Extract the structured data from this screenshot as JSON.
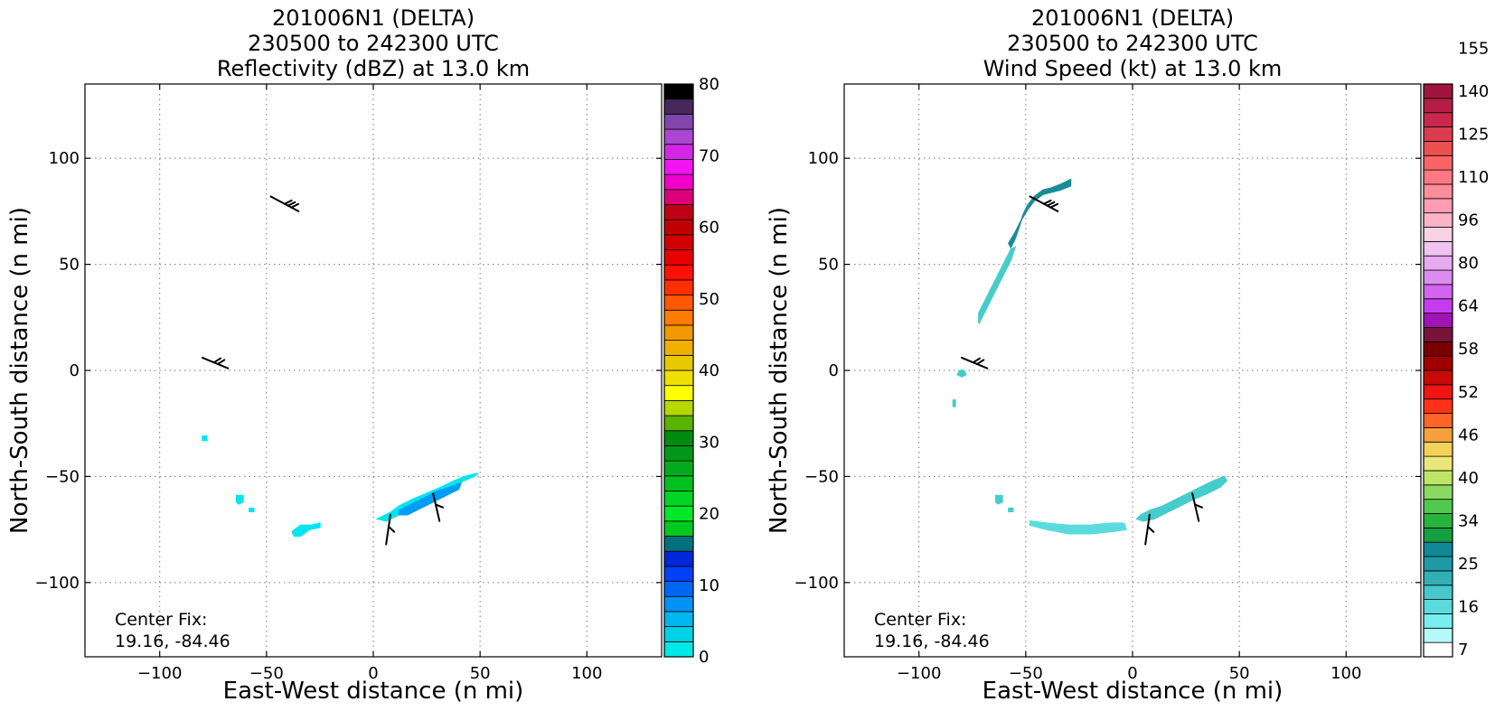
{
  "chart_data": [
    {
      "type": "heatmap",
      "title_lines": [
        "201006N1 (DELTA)",
        "230500 to 242300 UTC",
        "Reflectivity (dBZ) at 13.0 km"
      ],
      "xlabel": "East-West distance (n mi)",
      "ylabel": "North-South distance (n mi)",
      "xlim": [
        -135,
        135
      ],
      "ylim": [
        -135,
        135
      ],
      "xticks": [
        -100,
        -50,
        0,
        50,
        100
      ],
      "yticks": [
        -100,
        -50,
        0,
        50,
        100
      ],
      "grid": true,
      "annotation": [
        "Center Fix:",
        "19.16, -84.46"
      ],
      "colorbar": {
        "ticks": [
          "0",
          "10",
          "20",
          "30",
          "40",
          "50",
          "60",
          "70",
          "80"
        ],
        "colors": [
          "#00e8e8",
          "#00d2e6",
          "#00b6ee",
          "#0092f4",
          "#0068f0",
          "#0040f8",
          "#0028d8",
          "#00707c",
          "#00ca20",
          "#00e828",
          "#00d424",
          "#00c020",
          "#00aa1c",
          "#009818",
          "#008a10",
          "#5ab200",
          "#b4d800",
          "#ffff00",
          "#f0e000",
          "#e8c800",
          "#f0b000",
          "#f49800",
          "#ff7c00",
          "#ff5800",
          "#ff3000",
          "#ff1000",
          "#e80000",
          "#d20000",
          "#c00000",
          "#c00014",
          "#dc0078",
          "#f000c8",
          "#f014f0",
          "#d228e6",
          "#aa46d2",
          "#8246aa",
          "#46285a",
          "#000000"
        ]
      },
      "series": [
        {
          "type": "patch",
          "color": "#00e5ee",
          "x": [
            8,
            12,
            18,
            25,
            32,
            38,
            43,
            49,
            47,
            40,
            33,
            25,
            18,
            12,
            6,
            2
          ],
          "y": [
            -67,
            -64,
            -61,
            -58,
            -55,
            -52,
            -50,
            -48.5,
            -50,
            -53,
            -56,
            -60,
            -64,
            -68,
            -71,
            -70
          ]
        },
        {
          "type": "patch",
          "color": "#009cf6",
          "x": [
            12,
            18,
            24,
            30,
            36,
            41,
            40,
            34,
            28,
            22,
            16,
            12
          ],
          "y": [
            -66,
            -63,
            -60,
            -57,
            -55,
            -53,
            -56,
            -59,
            -62,
            -65,
            -68,
            -68
          ]
        },
        {
          "type": "patch",
          "color": "#00e5ee",
          "x": [
            -38,
            -34,
            -29,
            -25,
            -25,
            -30,
            -34,
            -37
          ],
          "y": [
            -76,
            -73,
            -73,
            -72,
            -74,
            -75,
            -78,
            -78
          ]
        },
        {
          "type": "patch",
          "color": "#00e5ee",
          "x": [
            -64,
            -61,
            -61,
            -63,
            -64
          ],
          "y": [
            -59,
            -59,
            -62,
            -63,
            -62
          ]
        },
        {
          "type": "patch",
          "color": "#00e5ee",
          "x": [
            -58,
            -56,
            -56,
            -58
          ],
          "y": [
            -65,
            -65,
            -66.5,
            -66.5
          ]
        },
        {
          "type": "patch",
          "color": "#00e5ee",
          "x": [
            -80,
            -78,
            -78,
            -80
          ],
          "y": [
            -31,
            -31,
            -33,
            -33
          ]
        }
      ],
      "wind_barbs": [
        {
          "x": -35,
          "y": 75,
          "ux": -13,
          "uy": 7,
          "barbs": [
            0.5,
            0.38,
            0.26
          ]
        },
        {
          "x": -68,
          "y": 1,
          "ux": -12,
          "uy": 5,
          "barbs": [
            0.55,
            0.4
          ]
        },
        {
          "x": 6,
          "y": -82,
          "ux": 2,
          "uy": 14,
          "barbs": [
            0.6
          ]
        },
        {
          "x": 31,
          "y": -71,
          "ux": -3,
          "uy": 13,
          "barbs": [
            0.6
          ]
        }
      ]
    },
    {
      "type": "heatmap",
      "title_lines": [
        "201006N1 (DELTA)",
        "230500 to 242300 UTC",
        "Wind Speed (kt) at 13.0 km"
      ],
      "xlabel": "East-West distance (n mi)",
      "ylabel": "North-South distance (n mi)",
      "xlim": [
        -135,
        135
      ],
      "ylim": [
        -135,
        135
      ],
      "xticks": [
        -100,
        -50,
        0,
        50,
        100
      ],
      "yticks": [
        -100,
        -50,
        0,
        50,
        100
      ],
      "grid": true,
      "annotation": [
        "Center Fix:",
        "19.16, -84.46"
      ],
      "colorbar": {
        "ticks": [
          "7",
          "16",
          "25",
          "34",
          "40",
          "46",
          "52",
          "58",
          "64",
          "80",
          "96",
          "110",
          "125",
          "140",
          "155"
        ],
        "colors": [
          "#ffffff",
          "#b4fafa",
          "#78eeee",
          "#5adcdc",
          "#46c8cc",
          "#32b0b8",
          "#1e9aa6",
          "#108896",
          "#14a040",
          "#28b43c",
          "#50c850",
          "#8cd864",
          "#bee664",
          "#ebe678",
          "#f5d25a",
          "#f5a03c",
          "#ff6428",
          "#ff3219",
          "#f01414",
          "#c80a0a",
          "#a00000",
          "#780000",
          "#78143c",
          "#a014b4",
          "#c83cf0",
          "#d264f0",
          "#dc8cf0",
          "#e6aaf0",
          "#f0c3f0",
          "#fad2e6",
          "#fab4c8",
          "#ff9bb4",
          "#ff8c9b",
          "#ff7882",
          "#fa6464",
          "#eb5050",
          "#dc3c50",
          "#c8284b",
          "#b41e46",
          "#a01440"
        ]
      },
      "series": [
        {
          "type": "patch",
          "color": "#1a8c98",
          "x": [
            -55,
            -53,
            -51,
            -49,
            -46,
            -42,
            -38,
            -33,
            -29,
            -29,
            -34,
            -38,
            -42,
            -46,
            -49,
            -52,
            -55,
            -58,
            -57
          ],
          "y": [
            62,
            68,
            74,
            78,
            82,
            85,
            86,
            88,
            90,
            87,
            85,
            84,
            83,
            80,
            76,
            71,
            65,
            60,
            58
          ]
        },
        {
          "type": "patch",
          "color": "#46cccc",
          "x": [
            -72,
            -69,
            -66,
            -63,
            -60,
            -57,
            -55,
            -57,
            -60,
            -63,
            -66,
            -69,
            -72
          ],
          "y": [
            22,
            28,
            34,
            40,
            46,
            52,
            58,
            57,
            51,
            45,
            39,
            33,
            27
          ]
        },
        {
          "type": "patch",
          "color": "#46cccc",
          "x": [
            -81,
            -79,
            -78,
            -80,
            -82
          ],
          "y": [
            0,
            0,
            -2,
            -3,
            -2
          ]
        },
        {
          "type": "patch",
          "color": "#46cccc",
          "x": [
            -84,
            -83,
            -83,
            -84
          ],
          "y": [
            -14,
            -14,
            -17,
            -17
          ]
        },
        {
          "type": "patch",
          "color": "#46cccc",
          "x": [
            -64,
            -61,
            -61,
            -63,
            -64
          ],
          "y": [
            -59,
            -59,
            -62,
            -63,
            -62
          ]
        },
        {
          "type": "patch",
          "color": "#46cccc",
          "x": [
            -58,
            -56,
            -56,
            -58
          ],
          "y": [
            -65,
            -65,
            -66.5,
            -66.5
          ]
        },
        {
          "type": "patch",
          "color": "#5adcdc",
          "x": [
            -48,
            -40,
            -30,
            -20,
            -10,
            -4,
            -3,
            -10,
            -20,
            -30,
            -40,
            -48
          ],
          "y": [
            -71,
            -72,
            -73,
            -73,
            -72,
            -72,
            -75,
            -76,
            -77,
            -77,
            -75,
            -73
          ]
        },
        {
          "type": "patch",
          "color": "#46cccc",
          "x": [
            8,
            14,
            20,
            26,
            32,
            38,
            43,
            44,
            41,
            35,
            28,
            22,
            16,
            10,
            5,
            2,
            4
          ],
          "y": [
            -66,
            -64,
            -61,
            -58,
            -55,
            -52,
            -50,
            -52,
            -55,
            -58,
            -61,
            -64,
            -67,
            -70,
            -71,
            -70,
            -68
          ]
        }
      ],
      "wind_barbs": [
        {
          "x": -35,
          "y": 75,
          "ux": -13,
          "uy": 7,
          "barbs": [
            0.5,
            0.38,
            0.26
          ]
        },
        {
          "x": -68,
          "y": 1,
          "ux": -12,
          "uy": 5,
          "barbs": [
            0.55,
            0.4
          ]
        },
        {
          "x": 6,
          "y": -82,
          "ux": 2,
          "uy": 14,
          "barbs": [
            0.6
          ]
        },
        {
          "x": 31,
          "y": -71,
          "ux": -3,
          "uy": 13,
          "barbs": [
            0.6
          ]
        }
      ]
    }
  ]
}
